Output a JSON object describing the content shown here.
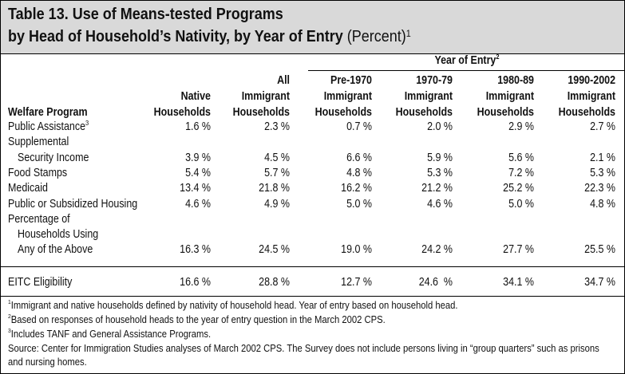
{
  "title": {
    "line1": "Table 13. Use of Means-tested Programs",
    "line2": "by Head of Household’s Nativity, by Year of Entry",
    "unit": "(Percent)",
    "note": "1"
  },
  "table": {
    "group_header": "Year of Entry",
    "group_header_note": "2",
    "columns": [
      [
        "Welfare Program"
      ],
      [
        "Native",
        "Households"
      ],
      [
        "All",
        "Immigrant",
        "Households"
      ],
      [
        "Pre-1970",
        "Immigrant",
        "Households"
      ],
      [
        "1970-79",
        "Immigrant",
        "Households"
      ],
      [
        "1980-89",
        "Immigrant",
        "Households"
      ],
      [
        "1990-2002",
        "Immigrant",
        "Households"
      ]
    ],
    "rows": [
      {
        "label": [
          "Public Assistance"
        ],
        "label_note": "3",
        "cells": [
          "1.6 %",
          "2.3 %",
          "0.7 %",
          "2.0 %",
          "2.9 %",
          "2.7 %"
        ]
      },
      {
        "label": [
          "Supplemental",
          "Security Income"
        ],
        "cells": [
          "3.9 %",
          "4.5 %",
          "6.6 %",
          "5.9 %",
          "5.6 %",
          "2.1 %"
        ]
      },
      {
        "label": [
          "Food Stamps"
        ],
        "cells": [
          "5.4 %",
          "5.7 %",
          "4.8 %",
          "5.3 %",
          "7.2 %",
          "5.3 %"
        ]
      },
      {
        "label": [
          "Medicaid"
        ],
        "cells": [
          "13.4 %",
          "21.8 %",
          "16.2 %",
          "21.2 %",
          "25.2 %",
          "22.3 %"
        ]
      },
      {
        "label": [
          "Public or Subsidized Housing"
        ],
        "cells": [
          "4.6 %",
          "4.9 %",
          "5.0 %",
          "4.6 %",
          "5.0 %",
          "4.8 %"
        ]
      },
      {
        "label": [
          "Percentage of",
          "Households Using",
          "Any of the Above"
        ],
        "cells": [
          "16.3 %",
          "24.5 %",
          "19.0 %",
          "24.2 %",
          "27.7 %",
          "25.5 %"
        ]
      },
      {
        "label": [
          "EITC Eligibility"
        ],
        "cells": [
          "16.6 %",
          "28.8 %",
          "12.7 %",
          "24.6  %",
          "34.1 %",
          "34.7 %"
        ]
      }
    ]
  },
  "footnotes": [
    {
      "mark": "1",
      "lines": [
        "Immigrant and native households defined by nativity of household head. Year of entry based on household head."
      ]
    },
    {
      "mark": "2",
      "lines": [
        "Based on responses of household heads to the year of entry question in the March 2002 CPS."
      ]
    },
    {
      "mark": "3",
      "lines": [
        "Includes TANF and General Assistance Programs."
      ]
    }
  ],
  "source": [
    "Source: Center for Immigration Studies analyses of March 2002 CPS. The Survey does not include persons living in “group quarters” such as prisons",
    "and nursing homes."
  ]
}
